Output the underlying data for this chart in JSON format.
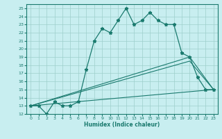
{
  "xlabel": "Humidex (Indice chaleur)",
  "xlim": [
    -0.5,
    23.5
  ],
  "ylim": [
    12,
    25.5
  ],
  "yticks": [
    12,
    13,
    14,
    15,
    16,
    17,
    18,
    19,
    20,
    21,
    22,
    23,
    24,
    25
  ],
  "xticks": [
    0,
    1,
    2,
    3,
    4,
    5,
    6,
    7,
    8,
    9,
    10,
    11,
    12,
    13,
    14,
    15,
    16,
    17,
    18,
    19,
    20,
    21,
    22,
    23
  ],
  "bg_color": "#c8eef0",
  "line_color": "#1a7a6e",
  "grid_color": "#9ecfcc",
  "series1_x": [
    0,
    1,
    2,
    3,
    4,
    5,
    6,
    7,
    8,
    9,
    10,
    11,
    12,
    13,
    14,
    15,
    16,
    17,
    18,
    19,
    20,
    21,
    22,
    23
  ],
  "series1_y": [
    13,
    13,
    12,
    13.5,
    13,
    13,
    13.5,
    17.5,
    21,
    22.5,
    22,
    23.5,
    25,
    23,
    23.5,
    24.5,
    23.5,
    23,
    23,
    19.5,
    19,
    16.5,
    15,
    15
  ],
  "series2_x": [
    0,
    23
  ],
  "series2_y": [
    13,
    15
  ],
  "series3_x": [
    0,
    20,
    23
  ],
  "series3_y": [
    13,
    18.5,
    15
  ],
  "series4_x": [
    0,
    20,
    23
  ],
  "series4_y": [
    13,
    19,
    15
  ]
}
